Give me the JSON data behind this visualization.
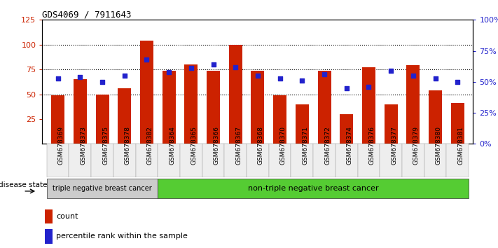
{
  "title": "GDS4069 / 7911643",
  "samples": [
    "GSM678369",
    "GSM678373",
    "GSM678375",
    "GSM678378",
    "GSM678382",
    "GSM678364",
    "GSM678365",
    "GSM678366",
    "GSM678367",
    "GSM678368",
    "GSM678370",
    "GSM678371",
    "GSM678372",
    "GSM678374",
    "GSM678376",
    "GSM678377",
    "GSM678379",
    "GSM678380",
    "GSM678381"
  ],
  "bar_heights": [
    49,
    65,
    50,
    56,
    104,
    74,
    80,
    74,
    100,
    74,
    49,
    40,
    74,
    30,
    77,
    40,
    79,
    54,
    41
  ],
  "blue_values": [
    53,
    54,
    50,
    55,
    68,
    58,
    61,
    64,
    62,
    55,
    53,
    51,
    56,
    45,
    46,
    59,
    55,
    53,
    50
  ],
  "bar_color": "#cc2200",
  "blue_color": "#2222cc",
  "ylim_left": [
    0,
    125
  ],
  "ylim_right": [
    0,
    100
  ],
  "group1_count": 5,
  "group1_label": "triple negative breast cancer",
  "group2_label": "non-triple negative breast cancer",
  "disease_state_label": "disease state",
  "legend_count_label": "count",
  "legend_percentile_label": "percentile rank within the sample",
  "bg_color": "#ffffff",
  "group1_bg": "#cccccc",
  "group2_bg": "#55cc33",
  "axis_label_color_left": "#cc2200",
  "axis_label_color_right": "#2222cc"
}
